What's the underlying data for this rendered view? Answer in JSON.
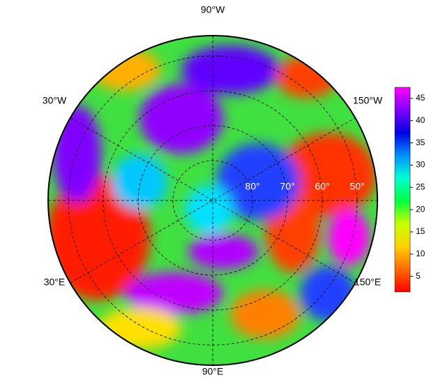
{
  "map": {
    "longitude_labels": [
      "90°W",
      "30°W",
      "150°W",
      "30°E",
      "150°E",
      "90°E"
    ],
    "latitude_labels": [
      "80°",
      "70°",
      "60°",
      "50°"
    ],
    "colorbar": {
      "lim": [
        1.5,
        47.5
      ],
      "ticks": [
        5,
        10,
        15,
        20,
        25,
        30,
        35,
        40,
        45
      ],
      "colors": [
        "#ff0000",
        "#ff6a00",
        "#ffd000",
        "#c8ff00",
        "#00ff40",
        "#00ffd0",
        "#0090ff",
        "#0000e0",
        "#8000ff",
        "#ff00ff"
      ]
    }
  }
}
